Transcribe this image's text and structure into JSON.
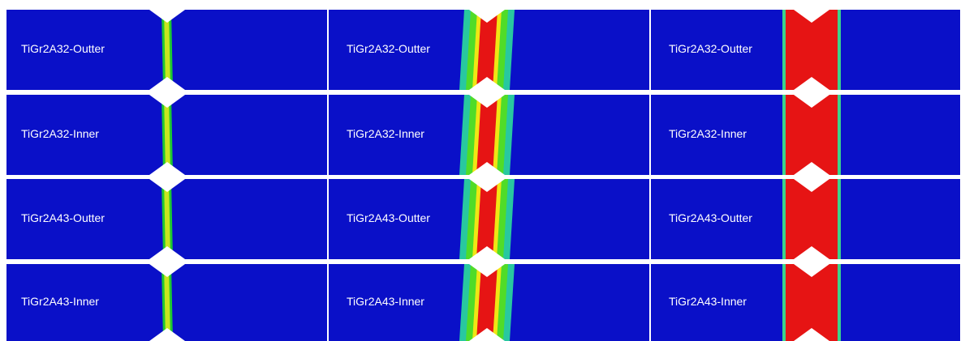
{
  "columns": [
    {
      "rows": [
        "TiGr2A32-Outter",
        "TiGr2A32-Inner",
        "TiGr2A43-Outter",
        "TiGr2A43-Inner"
      ]
    },
    {
      "rows": [
        "TiGr2A32-Outter",
        "TiGr2A32-Inner",
        "TiGr2A43-Outter",
        "TiGr2A43-Inner"
      ]
    },
    {
      "rows": [
        "TiGr2A32-Outter",
        "TiGr2A32-Inner",
        "TiGr2A43-Outter",
        "TiGr2A43-Inner"
      ]
    }
  ]
}
